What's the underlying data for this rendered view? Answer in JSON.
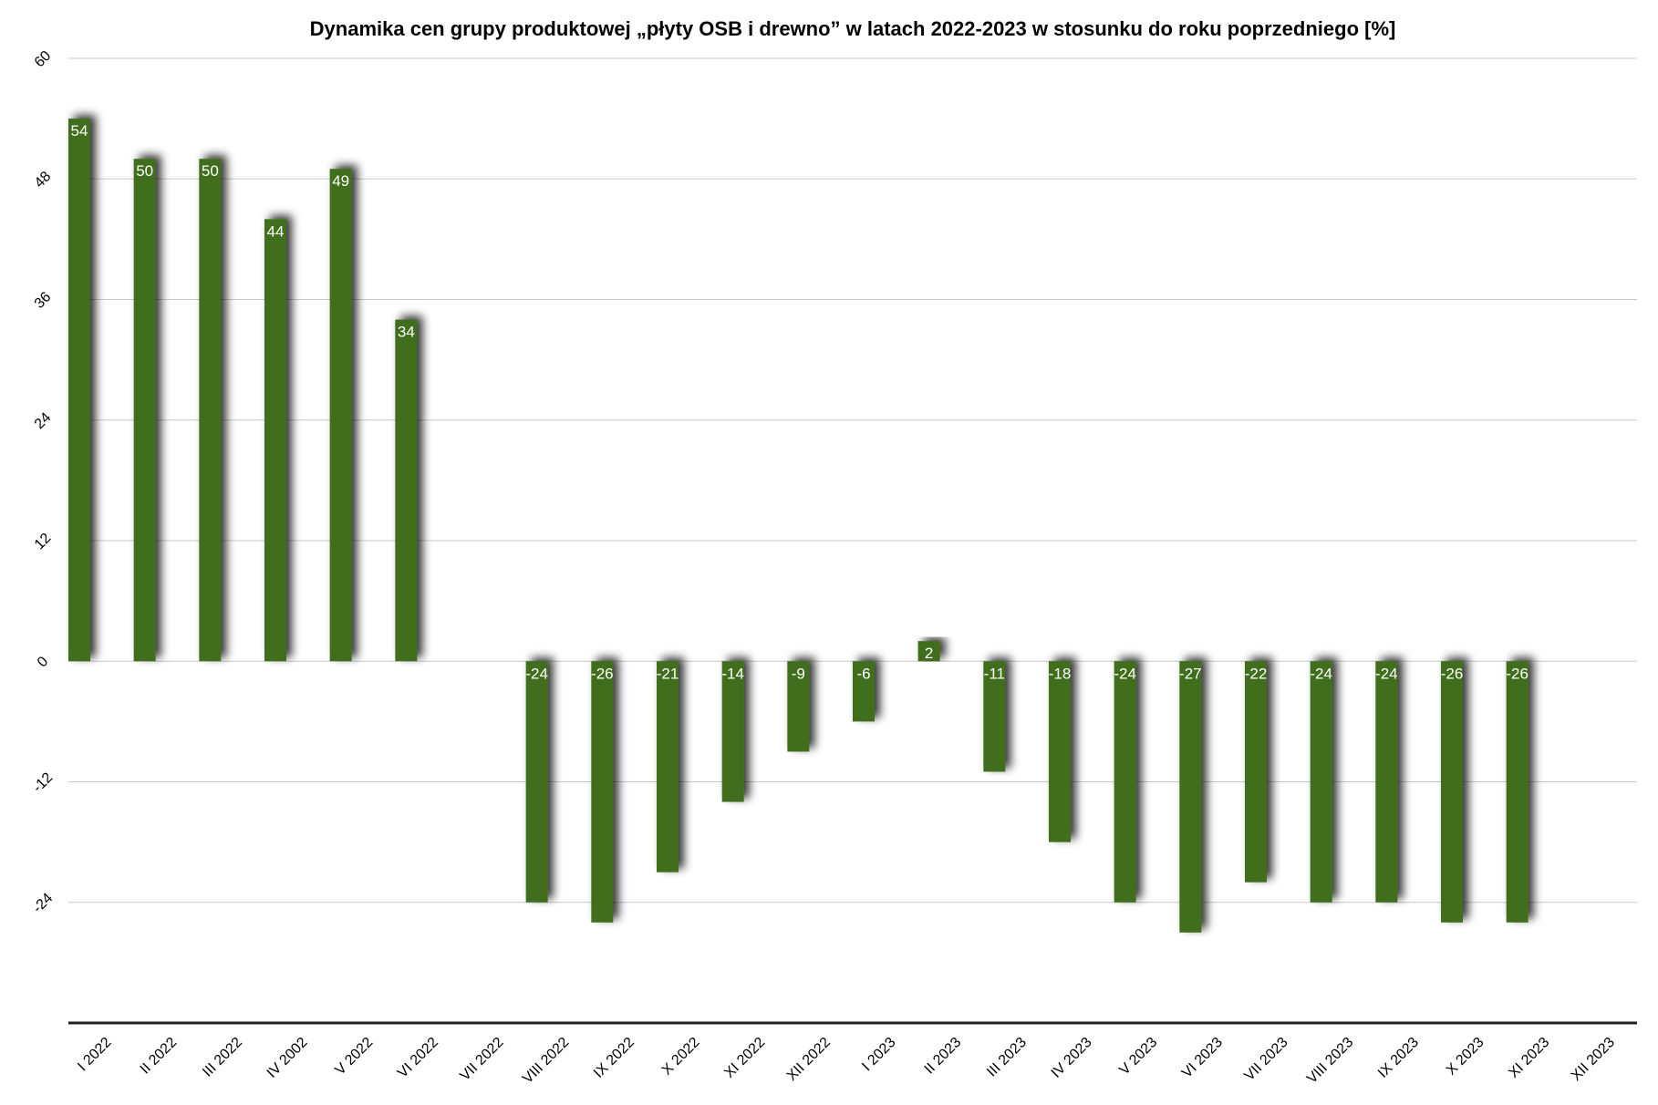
{
  "chart_data": {
    "type": "bar",
    "title": "Dynamika cen grupy produktowej „płyty OSB i drewno” w latach 2022-2023 w stosunku do roku poprzedniego [%]",
    "xlabel": "",
    "ylabel": "",
    "ylim": [
      -36,
      60
    ],
    "yticks": [
      60,
      48,
      36,
      24,
      12,
      0,
      -12,
      -24
    ],
    "grid": true,
    "legend": "none",
    "categories": [
      "I 2022",
      "II 2022",
      "III 2022",
      "IV 2002",
      "V 2022",
      "VI 2022",
      "VII 2022",
      "VIII 2022",
      "IX 2022",
      "X 2022",
      "XI 2022",
      "XII 2022",
      "I 2023",
      "II 2023",
      "III 2023",
      "IV 2023",
      "V 2023",
      "VI 2023",
      "VII 2023",
      "VIII 2023",
      "IX 2023",
      "X 2023",
      "XI 2023",
      "XII 2023"
    ],
    "values": [
      54,
      50,
      50,
      44,
      49,
      34,
      null,
      -24,
      -26,
      -21,
      -14,
      -9,
      -6,
      2,
      -11,
      -18,
      -24,
      -27,
      -22,
      -24,
      -24,
      -26,
      -26,
      null
    ],
    "bar_color": "#3f6e1e"
  }
}
